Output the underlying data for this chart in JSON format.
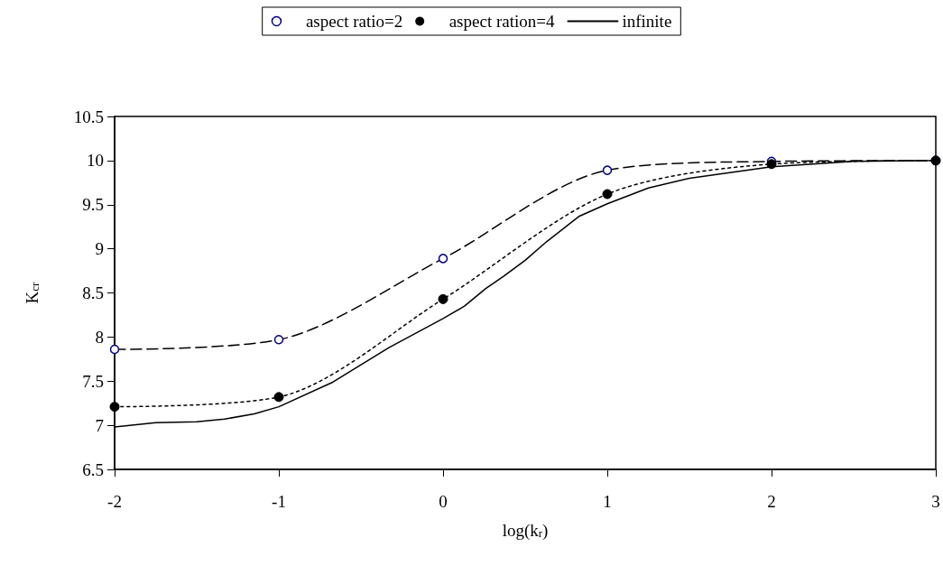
{
  "chart_data": {
    "type": "line",
    "xlabel": "log(k$_{r}$)",
    "ylabel": "K$_{cr}$",
    "xlim": [
      -2,
      3
    ],
    "xticks": [
      -2,
      -1,
      0,
      1,
      2,
      3
    ],
    "ylim": [
      6.5,
      10.5
    ],
    "yticks": [
      6.5,
      7,
      7.5,
      8,
      8.5,
      9,
      9.5,
      10,
      10.5
    ],
    "grid": false,
    "legend": "top",
    "series": [
      {
        "name": "aspect ratio=2",
        "color": "#000000",
        "line_style": "dashed",
        "marker": "circle",
        "x": [
          -2,
          -1,
          0,
          1,
          2,
          3
        ],
        "values": [
          7.86,
          7.97,
          8.89,
          9.89,
          9.99,
          10.0
        ]
      },
      {
        "name": "aspect ration=4",
        "color": "#000000",
        "line_style": "dotted",
        "marker": "circle",
        "x": [
          -2,
          -1,
          0,
          1,
          2,
          3
        ],
        "values": [
          7.21,
          7.32,
          8.43,
          9.62,
          9.96,
          10.0
        ]
      },
      {
        "name": "infinite",
        "color": "#000000",
        "line_style": "solid",
        "marker": "none",
        "x": [
          -2,
          -1.75,
          -1.5,
          -1.33,
          -1.15,
          -1,
          -0.67,
          -0.33,
          0,
          0.13,
          0.26,
          0.37,
          0.5,
          0.63,
          0.83,
          1,
          1.25,
          1.5,
          2,
          2.5,
          3
        ],
        "values": [
          6.98,
          7.03,
          7.04,
          7.07,
          7.13,
          7.21,
          7.49,
          7.88,
          8.21,
          8.35,
          8.55,
          8.69,
          8.87,
          9.08,
          9.37,
          9.51,
          9.69,
          9.8,
          9.93,
          9.99,
          10.0
        ]
      }
    ]
  }
}
